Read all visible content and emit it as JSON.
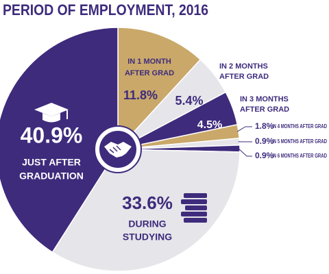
{
  "chart_data": {
    "type": "pie",
    "title": "PERIOD OF EMPLOYMENT, 2016",
    "categories": [
      [
        "IN 1 MONTH",
        "AFTER GRAD"
      ],
      [
        "IN 2 MONTHS",
        "AFTER GRAD"
      ],
      [
        "IN 3 MONTHS",
        "AFTER GRAD"
      ],
      [
        "IN 4 MONTHS AFTER GRAD"
      ],
      [
        "IN 5 MONTHS AFTER GRAD"
      ],
      [
        "IN 6 MONTHS AFTER GRAD"
      ],
      [
        "DURING",
        "STUDYING"
      ],
      [
        "JUST AFTER",
        "GRADUATION"
      ]
    ],
    "values": [
      11.8,
      5.4,
      4.5,
      1.8,
      0.9,
      0.9,
      33.6,
      40.9
    ],
    "value_labels": [
      "11.8%",
      "5.4%",
      "4.5%",
      "1.8%",
      "0.9%",
      "0.9%",
      "33.6%",
      "40.9%"
    ],
    "colors": [
      "#c9a86a",
      "#e6e5ea",
      "#3e2b7c",
      "#c9a86a",
      "#e6e5ea",
      "#3e2b7c",
      "#e6e5ea",
      "#3e2b7c"
    ]
  }
}
